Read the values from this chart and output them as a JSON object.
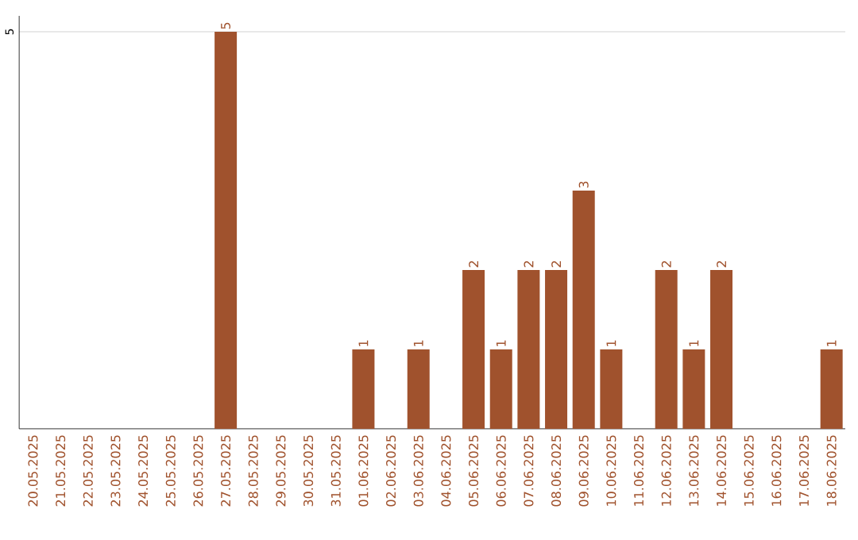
{
  "chart_data": {
    "type": "bar",
    "categories": [
      "20.05.2025",
      "21.05.2025",
      "22.05.2025",
      "23.05.2025",
      "24.05.2025",
      "25.05.2025",
      "26.05.2025",
      "27.05.2025",
      "28.05.2025",
      "29.05.2025",
      "30.05.2025",
      "31.05.2025",
      "01.06.2025",
      "02.06.2025",
      "03.06.2025",
      "04.06.2025",
      "05.06.2025",
      "06.06.2025",
      "07.06.2025",
      "08.06.2025",
      "09.06.2025",
      "10.06.2025",
      "11.06.2025",
      "12.06.2025",
      "13.06.2025",
      "14.06.2025",
      "15.06.2025",
      "16.06.2025",
      "17.06.2025",
      "18.06.2025"
    ],
    "values": [
      0,
      0,
      0,
      0,
      0,
      0,
      0,
      5,
      0,
      0,
      0,
      0,
      1,
      0,
      1,
      0,
      2,
      1,
      2,
      2,
      3,
      1,
      0,
      2,
      1,
      2,
      0,
      0,
      0,
      1
    ],
    "value_labels": [
      null,
      null,
      null,
      null,
      null,
      null,
      null,
      "5",
      null,
      null,
      null,
      null,
      "1",
      null,
      "1",
      null,
      "2",
      "1",
      "2",
      "2",
      "3",
      "1",
      null,
      "2",
      "1",
      "2",
      null,
      null,
      null,
      "1"
    ],
    "color": "#a0522d",
    "ylim": [
      0,
      5.2
    ],
    "yticks": [
      5
    ],
    "grid": "y"
  }
}
